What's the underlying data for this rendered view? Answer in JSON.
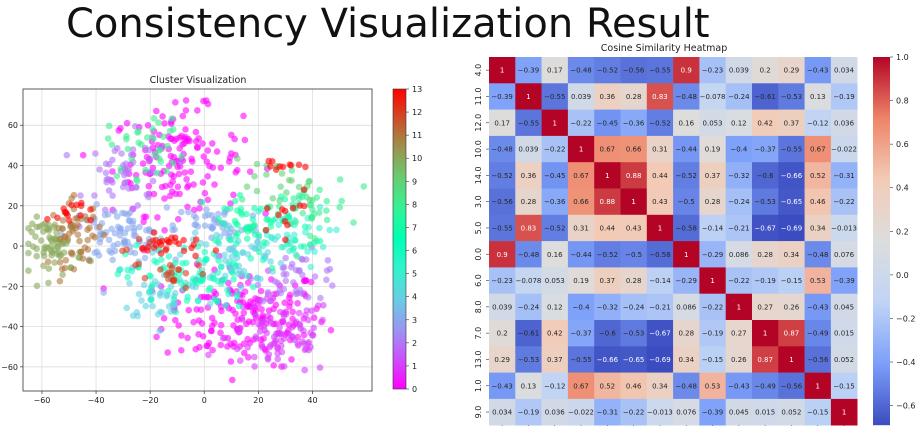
{
  "page_title": "Consistency Visualization Result",
  "chart_data": [
    {
      "type": "scatter",
      "title": "Cluster Visualization",
      "xlabel": "",
      "ylabel": "",
      "xlim": [
        -67,
        62
      ],
      "ylim": [
        -72,
        78
      ],
      "x_ticks": [
        -60,
        -40,
        -20,
        0,
        20,
        40
      ],
      "y_ticks": [
        -60,
        -40,
        -20,
        0,
        20,
        40,
        60
      ],
      "grid": true,
      "colormap": "rainbow",
      "colorbar": {
        "min": 0,
        "max": 13,
        "ticks": [
          0,
          1,
          2,
          3,
          4,
          5,
          6,
          7,
          8,
          9,
          10,
          11,
          12,
          13
        ]
      },
      "clusters": [
        {
          "label": 0,
          "cx": 15,
          "cy": -35,
          "sx": 15,
          "sy": 12,
          "n": 180
        },
        {
          "label": 0,
          "cx": -10,
          "cy": 42,
          "sx": 12,
          "sy": 13,
          "n": 150
        },
        {
          "label": 1,
          "cx": 28,
          "cy": -45,
          "sx": 10,
          "sy": 10,
          "n": 90
        },
        {
          "label": 2,
          "cx": -28,
          "cy": 35,
          "sx": 8,
          "sy": 10,
          "n": 50
        },
        {
          "label": 2,
          "cx": 35,
          "cy": -15,
          "sx": 8,
          "sy": 6,
          "n": 40
        },
        {
          "label": 3,
          "cx": -32,
          "cy": 5,
          "sx": 9,
          "sy": 7,
          "n": 80
        },
        {
          "label": 3,
          "cx": 5,
          "cy": 10,
          "sx": 8,
          "sy": 6,
          "n": 40
        },
        {
          "label": 4,
          "cx": -15,
          "cy": -25,
          "sx": 8,
          "sy": 6,
          "n": 40
        },
        {
          "label": 4,
          "cx": 10,
          "cy": -5,
          "sx": 10,
          "sy": 8,
          "n": 70
        },
        {
          "label": 5,
          "cx": 30,
          "cy": 5,
          "sx": 8,
          "sy": 8,
          "n": 40
        },
        {
          "label": 6,
          "cx": -5,
          "cy": -15,
          "sx": 12,
          "sy": 8,
          "n": 90
        },
        {
          "label": 7,
          "cx": 20,
          "cy": 10,
          "sx": 10,
          "sy": 8,
          "n": 60
        },
        {
          "label": 8,
          "cx": -20,
          "cy": 50,
          "sx": 8,
          "sy": 8,
          "n": 35
        },
        {
          "label": 8,
          "cx": 38,
          "cy": 20,
          "sx": 8,
          "sy": 8,
          "n": 40
        },
        {
          "label": 9,
          "cx": 25,
          "cy": 30,
          "sx": 8,
          "sy": 6,
          "n": 20
        },
        {
          "label": 10,
          "cx": -55,
          "cy": 0,
          "sx": 5,
          "sy": 7,
          "n": 70
        },
        {
          "label": 11,
          "cx": -47,
          "cy": 6,
          "sx": 5,
          "sy": 8,
          "n": 50
        },
        {
          "label": 12,
          "cx": -10,
          "cy": -15,
          "sx": 5,
          "sy": 4,
          "n": 18
        },
        {
          "label": 12,
          "cx": -25,
          "cy": 0,
          "sx": 4,
          "sy": 4,
          "n": 10
        },
        {
          "label": 13,
          "cx": -50,
          "cy": 17,
          "sx": 4,
          "sy": 3,
          "n": 15
        },
        {
          "label": 13,
          "cx": -12,
          "cy": 0,
          "sx": 6,
          "sy": 3,
          "n": 25
        },
        {
          "label": 13,
          "cx": 28,
          "cy": 40,
          "sx": 4,
          "sy": 2,
          "n": 10
        },
        {
          "label": 13,
          "cx": 30,
          "cy": 15,
          "sx": 6,
          "sy": 5,
          "n": 12
        }
      ]
    },
    {
      "type": "heatmap",
      "title": "Cosine Similarity Heatmap",
      "labels": [
        "4.0",
        "11.0",
        "12.0",
        "10.0",
        "14.0",
        "3.0",
        "5.0",
        "0.0",
        "6.0",
        "8.0",
        "7.0",
        "13.0",
        "1.0",
        "9.0"
      ],
      "matrix": [
        [
          "1",
          "-0.39",
          "0.17",
          "-0.48",
          "-0.52",
          "-0.56",
          "-0.55",
          "0.9",
          "-0.23",
          "0.039",
          "0.2",
          "0.29",
          "-0.43",
          "0.034"
        ],
        [
          "-0.39",
          "1",
          "-0.55",
          "0.039",
          "0.36",
          "0.28",
          "0.83",
          "-0.48",
          "-0.078",
          "-0.24",
          "-0.61",
          "-0.53",
          "0.13",
          "-0.19"
        ],
        [
          "0.17",
          "-0.55",
          "1",
          "-0.22",
          "-0.45",
          "-0.36",
          "-0.52",
          "0.16",
          "0.053",
          "0.12",
          "0.42",
          "0.37",
          "-0.12",
          "0.036"
        ],
        [
          "-0.48",
          "0.039",
          "-0.22",
          "1",
          "0.67",
          "0.66",
          "0.31",
          "-0.44",
          "0.19",
          "-0.4",
          "-0.37",
          "-0.55",
          "0.67",
          "-0.022"
        ],
        [
          "-0.52",
          "0.36",
          "-0.45",
          "0.67",
          "1",
          "0.88",
          "0.44",
          "-0.52",
          "0.37",
          "-0.32",
          "-0.6",
          "-0.66",
          "0.52",
          "-0.31"
        ],
        [
          "-0.56",
          "0.28",
          "-0.36",
          "0.66",
          "0.88",
          "1",
          "0.43",
          "-0.5",
          "0.28",
          "-0.24",
          "-0.53",
          "-0.65",
          "0.46",
          "-0.22"
        ],
        [
          "-0.55",
          "0.83",
          "-0.52",
          "0.31",
          "0.44",
          "0.43",
          "1",
          "-0.58",
          "-0.14",
          "-0.21",
          "-0.67",
          "-0.69",
          "0.34",
          "-0.013"
        ],
        [
          "0.9",
          "-0.48",
          "0.16",
          "-0.44",
          "-0.52",
          "-0.5",
          "-0.58",
          "1",
          "-0.29",
          "0.086",
          "0.28",
          "0.34",
          "-0.48",
          "0.076"
        ],
        [
          "-0.23",
          "-0.078",
          "0.053",
          "0.19",
          "0.37",
          "0.28",
          "-0.14",
          "-0.29",
          "1",
          "-0.22",
          "-0.19",
          "-0.15",
          "0.53",
          "-0.39"
        ],
        [
          "0.039",
          "-0.24",
          "0.12",
          "-0.4",
          "-0.32",
          "-0.24",
          "-0.21",
          "0.086",
          "-0.22",
          "1",
          "0.27",
          "0.26",
          "-0.43",
          "0.045"
        ],
        [
          "0.2",
          "-0.61",
          "0.42",
          "-0.37",
          "-0.6",
          "-0.53",
          "-0.67",
          "0.28",
          "-0.19",
          "0.27",
          "1",
          "0.87",
          "-0.49",
          "0.015"
        ],
        [
          "0.29",
          "-0.53",
          "0.37",
          "-0.55",
          "-0.66",
          "-0.65",
          "-0.69",
          "0.34",
          "-0.15",
          "0.26",
          "0.87",
          "1",
          "-0.56",
          "0.052"
        ],
        [
          "-0.43",
          "0.13",
          "-0.12",
          "0.67",
          "0.52",
          "0.46",
          "0.34",
          "-0.48",
          "0.53",
          "-0.43",
          "-0.49",
          "-0.56",
          "1",
          "-0.15"
        ],
        [
          "0.034",
          "-0.19",
          "0.036",
          "-0.022",
          "-0.31",
          "-0.22",
          "-0.013",
          "0.076",
          "-0.39",
          "0.045",
          "0.015",
          "0.052",
          "-0.15",
          "1"
        ]
      ],
      "colormap": "coolwarm",
      "colorbar": {
        "min": -0.69,
        "max": 1.0,
        "ticks": [
          "-0.6",
          "-0.4",
          "-0.2",
          "0.0",
          "0.2",
          "0.4",
          "0.6",
          "0.8",
          "1.0"
        ]
      }
    }
  ]
}
